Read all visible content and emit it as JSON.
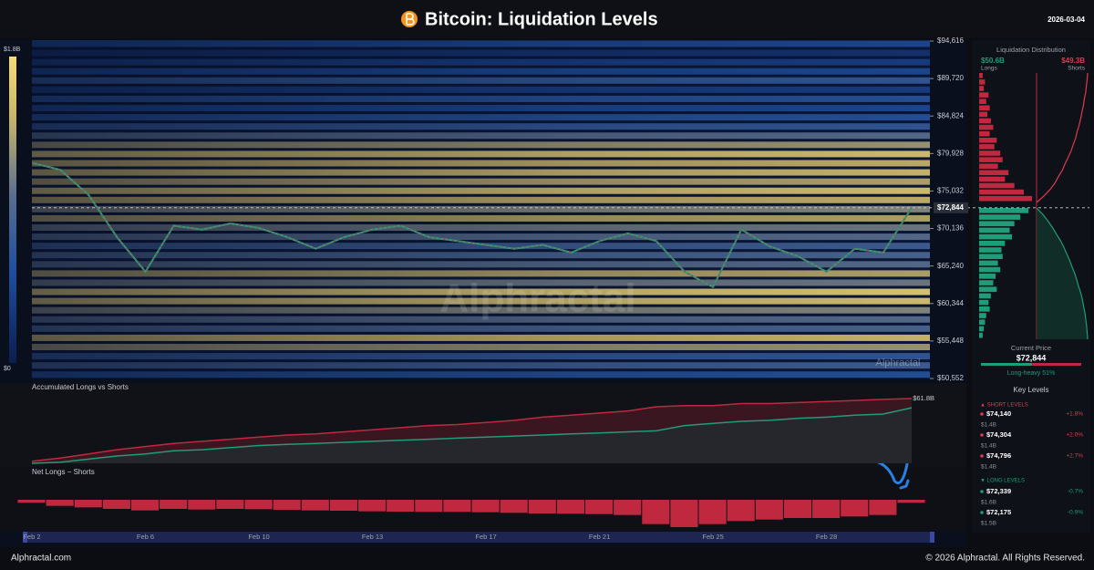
{
  "header": {
    "title": "Bitcoin: Liquidation Levels",
    "date": "2026-03-04"
  },
  "watermark": "Alphractal",
  "chart_data": [
    {
      "type": "heatmap",
      "levels": [
        51000,
        52200,
        53400,
        54600,
        55800,
        57000,
        58200,
        59400,
        60600,
        61800,
        63000,
        64200,
        65400,
        66600,
        67800,
        69000,
        70200,
        71400,
        72600,
        73800,
        75000,
        76200,
        77400,
        78600,
        79800,
        81000,
        82200,
        83400,
        84600,
        85800,
        87000,
        88200,
        89400,
        90600,
        91800,
        93000,
        94200
      ],
      "values": [
        0.5,
        0.7,
        0.6,
        1.2,
        1.5,
        0.8,
        0.9,
        1.1,
        1.6,
        1.7,
        1.0,
        1.3,
        0.9,
        0.8,
        0.7,
        0.9,
        1.0,
        1.3,
        1.1,
        1.4,
        1.6,
        1.3,
        1.5,
        1.4,
        1.6,
        1.2,
        0.9,
        0.6,
        0.5,
        0.4,
        0.5,
        0.3,
        0.6,
        0.4,
        0.3,
        0.2,
        0.4
      ],
      "zlim": [
        0,
        1.8
      ],
      "zticks": [
        {
          "value": 1.8,
          "label": "$1.8B"
        },
        {
          "value": 0,
          "label": "$0"
        }
      ]
    },
    {
      "type": "line",
      "categories": [
        "Feb 2",
        null,
        null,
        null,
        "Feb 6",
        null,
        null,
        null,
        "Feb 10",
        null,
        null,
        null,
        "Feb 13",
        null,
        null,
        null,
        "Feb 17",
        null,
        null,
        null,
        "Feb 21",
        null,
        null,
        null,
        "Feb 25",
        null,
        null,
        null,
        "Feb 28",
        null,
        null,
        null
      ],
      "values": [
        78700,
        77800,
        74500,
        69000,
        64500,
        70500,
        70000,
        70800,
        70200,
        69000,
        67500,
        69000,
        70000,
        70500,
        69000,
        68500,
        68000,
        67500,
        68000,
        67000,
        68500,
        69500,
        68500,
        64500,
        62500,
        70000,
        67800,
        66500,
        64500,
        67500,
        67000,
        72844
      ],
      "color": "#2e9c7a",
      "ylim": [
        50552,
        94616
      ],
      "yticks": [
        {
          "value": 94616,
          "label": "$94,616"
        },
        {
          "value": 89720,
          "label": "$89,720"
        },
        {
          "value": 84824,
          "label": "$84,824"
        },
        {
          "value": 79928,
          "label": "$79,928"
        },
        {
          "value": 75032,
          "label": "$75,032"
        },
        {
          "value": 70136,
          "label": "$70,136"
        },
        {
          "value": 65240,
          "label": "$65,240"
        },
        {
          "value": 60344,
          "label": "$60,344"
        },
        {
          "value": 55448,
          "label": "$55,448"
        },
        {
          "value": 50552,
          "label": "$50,552"
        }
      ],
      "current_price": {
        "value": 72844,
        "label": "$72,844"
      },
      "grid": false
    },
    {
      "type": "area",
      "title": "Accumulated Longs vs Shorts",
      "series": [
        {
          "color": "#c0283f",
          "values": [
            2,
            5,
            9,
            13,
            16,
            19,
            21,
            23,
            25,
            27,
            28,
            30,
            32,
            34,
            36,
            37,
            39,
            41,
            44,
            46,
            48,
            50,
            54,
            55,
            55,
            57,
            57,
            58,
            59,
            60,
            61,
            61.8
          ],
          "value_labels": [
            null,
            null,
            null,
            null,
            null,
            null,
            null,
            null,
            null,
            null,
            null,
            null,
            null,
            null,
            null,
            null,
            null,
            null,
            null,
            null,
            null,
            null,
            null,
            null,
            null,
            null,
            null,
            null,
            null,
            null,
            null,
            "$61.8B"
          ]
        },
        {
          "color": "#1f9c78",
          "values": [
            0,
            1,
            4,
            7,
            9,
            12,
            13,
            15,
            17,
            18,
            19,
            20,
            21,
            22,
            23,
            24,
            25,
            26,
            27,
            28,
            29,
            30,
            31,
            36,
            38,
            40,
            41,
            43,
            44,
            46,
            47,
            53
          ]
        }
      ]
    },
    {
      "type": "bar",
      "title": "Net Longs − Shorts",
      "color": "#c0283f",
      "values": [
        -1,
        -2,
        -2.5,
        -3,
        -3.5,
        -3,
        -3.2,
        -3,
        -3.1,
        -3.3,
        -3.5,
        -3.6,
        -3.8,
        -3.9,
        -4,
        -4,
        -4.1,
        -4.3,
        -4.5,
        -4.6,
        -4.7,
        -5,
        -8,
        -9,
        -8,
        -7,
        -6.5,
        -6,
        -6,
        -5.5,
        -5,
        -1
      ]
    }
  ],
  "sidebar": {
    "title": "Liquidation Distribution",
    "longs_total": "$50.6B",
    "longs_label": "Longs",
    "shorts_total": "$49.3B",
    "shorts_label": "Shorts",
    "distribution": {
      "shorts": [
        0.3,
        0.5,
        0.4,
        0.8,
        0.6,
        0.9,
        0.7,
        1.0,
        1.2,
        0.9,
        1.5,
        1.3,
        1.8,
        2.0,
        1.6,
        2.5,
        2.2,
        3.0,
        3.8,
        4.5
      ],
      "longs": [
        4.2,
        3.5,
        3.0,
        2.6,
        2.8,
        2.2,
        1.9,
        2.0,
        1.6,
        1.8,
        1.4,
        1.2,
        1.5,
        1.0,
        0.8,
        0.9,
        0.6,
        0.5,
        0.4,
        0.3
      ]
    },
    "current_price_label": "Current Price",
    "current_price": "$72,844",
    "long_share": {
      "value": 51,
      "label": "Long-heavy 51%"
    },
    "key_levels": {
      "title": "Key Levels",
      "short_title": "▲ SHORT LEVELS",
      "shorts": [
        {
          "price": "$74,140",
          "change": "+1.8%",
          "size": "$1.4B"
        },
        {
          "price": "$74,304",
          "change": "+2.0%",
          "size": "$1.4B"
        },
        {
          "price": "$74,796",
          "change": "+2.7%",
          "size": "$1.4B"
        }
      ],
      "long_title": "▼ LONG LEVELS",
      "longs": [
        {
          "price": "$72,339",
          "change": "-0.7%",
          "size": "$1.6B"
        },
        {
          "price": "$72,175",
          "change": "-0.9%",
          "size": "$1.5B"
        }
      ]
    }
  },
  "footer": {
    "left": "Alphractal.com",
    "right": "© 2026 Alphractal. All Rights Reserved."
  }
}
